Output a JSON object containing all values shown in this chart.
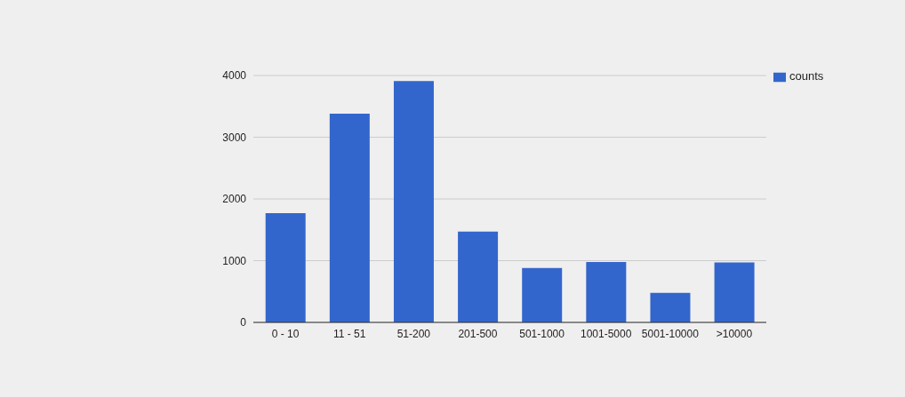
{
  "chart_data": {
    "type": "bar",
    "categories": [
      "0 - 10",
      "11 - 51",
      "51-200",
      "201-500",
      "501-1000",
      "1001-5000",
      "5001-10000",
      ">10000"
    ],
    "series": [
      {
        "name": "counts",
        "color": "#3366cc",
        "values": [
          1770,
          3380,
          3910,
          1470,
          880,
          980,
          480,
          970
        ]
      }
    ],
    "ylim": [
      0,
      4000
    ],
    "yticks": [
      0,
      1000,
      2000,
      3000,
      4000
    ],
    "grid": "y",
    "legend": "top right"
  }
}
